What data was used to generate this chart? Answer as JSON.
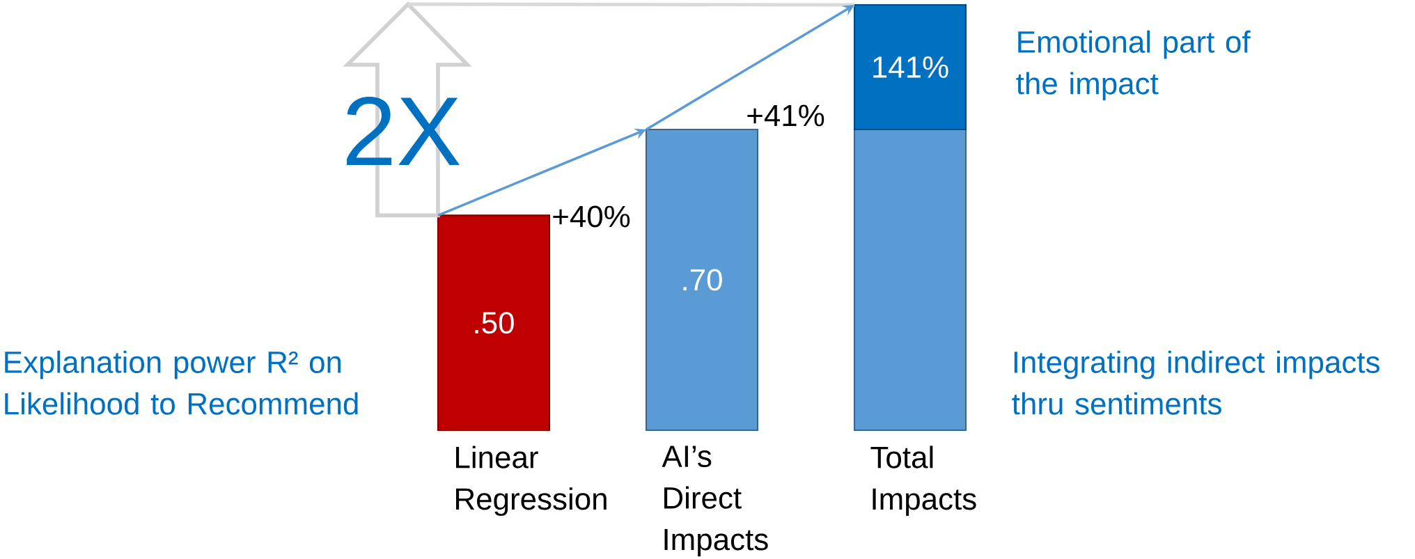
{
  "chart_data": {
    "type": "bar",
    "stacked": true,
    "categories": [
      "Linear Regression",
      "AI’s Direct Impacts",
      "Total Impacts"
    ],
    "series": [
      {
        "colors": [
          "#c00000",
          "#5b9bd5",
          "#5b9bd5"
        ],
        "values": [
          0.5,
          0.7,
          0.7
        ],
        "value_labels": [
          ".50",
          ".70",
          null
        ]
      },
      {
        "color": "#0070c0",
        "values": [
          null,
          null,
          0.29
        ]
      }
    ],
    "annotations": [
      "2X",
      "+40%",
      "+41%",
      "Emotional part of the impact",
      "Integrating indirect impacts thru sentiments",
      "Explanation power R² on Likelihood to Recommend",
      "141%"
    ]
  }
}
